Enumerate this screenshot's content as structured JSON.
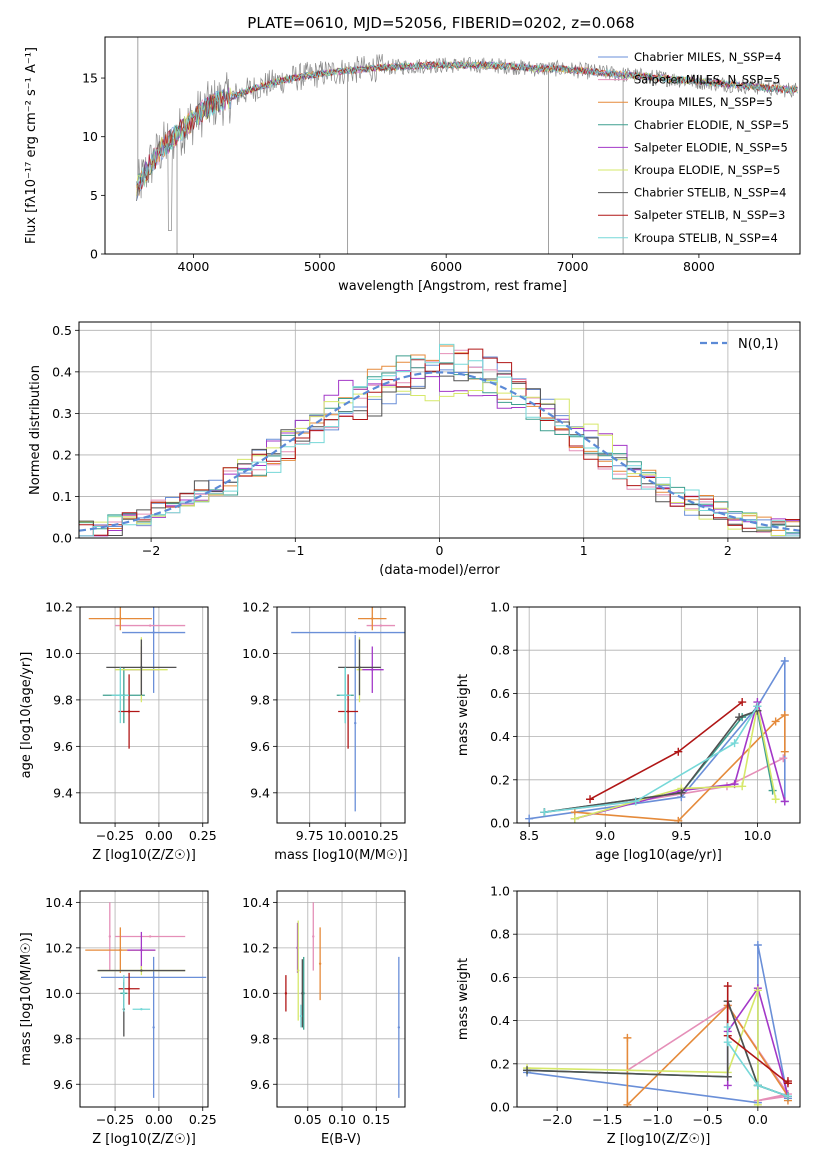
{
  "colors": {
    "Chabrier MILES": "#6a8fd8",
    "Salpeter MILES": "#e58fb8",
    "Kroupa MILES": "#e58a3a",
    "Chabrier ELODIE": "#3f9f8f",
    "Salpeter ELODIE": "#a338c8",
    "Kroupa ELODIE": "#d6e86a",
    "Chabrier STELIB": "#505050",
    "Salpeter STELIB": "#b01616",
    "Kroupa STELIB": "#76d8d8"
  },
  "chart_data": [
    {
      "id": "spectrum",
      "type": "line",
      "title": "PLATE=0610, MJD=52056, FIBERID=0202, z=0.068",
      "xlabel": "wavelength [Angstrom, rest frame]",
      "ylabel": "Flux [fλ10⁻¹⁷ erg cm⁻² s⁻¹ A⁻¹]",
      "xlim": [
        3300,
        8800
      ],
      "ylim": [
        0,
        18.5
      ],
      "xticks": [
        4000,
        5000,
        6000,
        7000,
        8000
      ],
      "yticks": [
        0,
        5,
        10,
        15
      ],
      "legend_position": "upper right",
      "legend": [
        {
          "model": "Chabrier MILES",
          "label": "Chabrier MILES, N_SSP=4"
        },
        {
          "model": "Salpeter MILES",
          "label": "Salpeter MILES, N_SSP=5"
        },
        {
          "model": "Kroupa MILES",
          "label": "Kroupa MILES, N_SSP=5"
        },
        {
          "model": "Chabrier ELODIE",
          "label": "Chabrier ELODIE, N_SSP=5"
        },
        {
          "model": "Salpeter ELODIE",
          "label": "Salpeter ELODIE, N_SSP=5"
        },
        {
          "model": "Kroupa ELODIE",
          "label": "Kroupa ELODIE, N_SSP=5"
        },
        {
          "model": "Chabrier STELIB",
          "label": "Chabrier STELIB, N_SSP=4"
        },
        {
          "model": "Salpeter STELIB",
          "label": "Salpeter STELIB, N_SSP=3"
        },
        {
          "model": "Kroupa STELIB",
          "label": "Kroupa STELIB, N_SSP=4"
        }
      ],
      "continuum": {
        "x": [
          3550,
          3650,
          3750,
          3850,
          3950,
          4050,
          4150,
          4250,
          4350,
          4500,
          4700,
          4900,
          5100,
          5300,
          5500,
          5700,
          5900,
          6100,
          6300,
          6500,
          6700,
          6900,
          7100,
          7300,
          7500,
          7700,
          7900,
          8100,
          8300,
          8500,
          8700
        ],
        "y": [
          5.5,
          7.5,
          9.0,
          10.0,
          11.0,
          12.0,
          12.8,
          13.2,
          13.6,
          14.2,
          14.8,
          15.2,
          15.5,
          15.7,
          15.9,
          16.0,
          16.1,
          16.1,
          16.1,
          16.0,
          15.8,
          15.8,
          15.6,
          15.4,
          15.2,
          15.0,
          14.8,
          14.6,
          14.4,
          14.2,
          14.0
        ]
      }
    },
    {
      "id": "residuals",
      "type": "histogram",
      "xlabel": "(data-model)/error",
      "ylabel": "Normed distribution",
      "xlim": [
        -2.5,
        2.5
      ],
      "ylim": [
        0,
        0.52
      ],
      "xticks": [
        -2,
        -1,
        0,
        1,
        2
      ],
      "yticks": [
        0.0,
        0.1,
        0.2,
        0.3,
        0.4,
        0.5
      ],
      "reference_curve": "N(0,1)",
      "reference_color": "#5b8ad6",
      "bin_width": 0.1
    },
    {
      "id": "age-vs-Z",
      "type": "scatter",
      "xlabel": "Z [log10(Z/Z☉)]",
      "ylabel": "age  [log10(age/yr)]",
      "xlim": [
        -0.45,
        0.28
      ],
      "ylim": [
        9.27,
        10.2
      ],
      "xticks": [
        -0.25,
        0.0,
        0.25
      ],
      "yticks": [
        9.4,
        9.6,
        9.8,
        10.0,
        10.2
      ],
      "points": [
        {
          "model": "Chabrier MILES",
          "x": -0.03,
          "y": 10.09,
          "xerr": 0.18,
          "yerr": 0.26
        },
        {
          "model": "Salpeter MILES",
          "x": -0.05,
          "y": 10.12,
          "xerr": 0.2,
          "yerr": 0.0
        },
        {
          "model": "Kroupa MILES",
          "x": -0.22,
          "y": 10.15,
          "xerr": 0.18,
          "yerr": 0.05
        },
        {
          "model": "Chabrier ELODIE",
          "x": -0.2,
          "y": 9.82,
          "xerr": 0.12,
          "yerr": 0.12
        },
        {
          "model": "Salpeter ELODIE",
          "x": -0.1,
          "y": 9.93,
          "xerr": 0.1,
          "yerr": 0.1
        },
        {
          "model": "Kroupa ELODIE",
          "x": -0.1,
          "y": 9.93,
          "xerr": 0.15,
          "yerr": 0.14
        },
        {
          "model": "Chabrier STELIB",
          "x": -0.1,
          "y": 9.94,
          "xerr": 0.2,
          "yerr": 0.12
        },
        {
          "model": "Salpeter STELIB",
          "x": -0.17,
          "y": 9.75,
          "xerr": 0.06,
          "yerr": 0.16
        },
        {
          "model": "Kroupa STELIB",
          "x": -0.22,
          "y": 9.82,
          "xerr": 0.05,
          "yerr": 0.12
        }
      ]
    },
    {
      "id": "age-vs-mass",
      "type": "scatter",
      "xlabel": "mass [log10(M/M☉)]",
      "ylabel": "",
      "xlim": [
        9.52,
        10.42
      ],
      "ylim": [
        9.27,
        10.2
      ],
      "xticks": [
        9.75,
        10.0,
        10.25
      ],
      "yticks": [
        9.4,
        9.6,
        9.8,
        10.0,
        10.2
      ],
      "points": [
        {
          "model": "Chabrier MILES",
          "x": 10.07,
          "y": 10.09,
          "xerr": 0.45,
          "yerr": 0.0
        },
        {
          "model": "Chabrier MILES",
          "x": 10.07,
          "y": 9.7,
          "xerr": 0.0,
          "yerr": 0.38
        },
        {
          "model": "Salpeter MILES",
          "x": 10.25,
          "y": 10.12,
          "xerr": 0.1,
          "yerr": 0.0
        },
        {
          "model": "Kroupa MILES",
          "x": 10.19,
          "y": 10.15,
          "xerr": 0.1,
          "yerr": 0.05
        },
        {
          "model": "Chabrier ELODIE",
          "x": 10.0,
          "y": 9.82,
          "xerr": 0.06,
          "yerr": 0.12
        },
        {
          "model": "Salpeter ELODIE",
          "x": 10.19,
          "y": 9.93,
          "xerr": 0.08,
          "yerr": 0.1
        },
        {
          "model": "Kroupa ELODIE",
          "x": 10.1,
          "y": 9.93,
          "xerr": 0.02,
          "yerr": 0.14
        },
        {
          "model": "Chabrier STELIB",
          "x": 10.1,
          "y": 9.94,
          "xerr": 0.15,
          "yerr": 0.12
        },
        {
          "model": "Salpeter STELIB",
          "x": 10.02,
          "y": 9.75,
          "xerr": 0.07,
          "yerr": 0.16
        },
        {
          "model": "Kroupa STELIB",
          "x": 10.0,
          "y": 9.82,
          "xerr": 0.04,
          "yerr": 0.12
        }
      ]
    },
    {
      "id": "mass-weight-vs-age",
      "type": "line",
      "xlabel": "age  [log10(age/yr)]",
      "ylabel": "mass weight",
      "xlim": [
        8.42,
        10.28
      ],
      "ylim": [
        0,
        1.0
      ],
      "xticks": [
        8.5,
        9.0,
        9.5,
        10.0
      ],
      "yticks": [
        0.0,
        0.2,
        0.4,
        0.6,
        0.8,
        1.0
      ],
      "series": [
        {
          "model": "Chabrier MILES",
          "x": [
            8.5,
            9.5,
            10.0,
            10.18,
            10.18
          ],
          "y": [
            0.02,
            0.12,
            0.54,
            0.75,
            0.1
          ]
        },
        {
          "model": "Salpeter MILES",
          "x": [
            8.6,
            9.2,
            9.8,
            10.17
          ],
          "y": [
            0.05,
            0.1,
            0.17,
            0.3
          ]
        },
        {
          "model": "Kroupa MILES",
          "x": [
            8.8,
            9.48,
            10.12,
            10.18,
            10.18
          ],
          "y": [
            0.05,
            0.01,
            0.47,
            0.5,
            0.33
          ]
        },
        {
          "model": "Chabrier ELODIE",
          "x": [
            8.6,
            9.5,
            9.9,
            10.0,
            10.1
          ],
          "y": [
            0.05,
            0.14,
            0.49,
            0.52,
            0.15
          ]
        },
        {
          "model": "Salpeter ELODIE",
          "x": [
            8.8,
            9.5,
            9.85,
            10.0,
            10.18
          ],
          "y": [
            0.02,
            0.15,
            0.18,
            0.56,
            0.1
          ]
        },
        {
          "model": "Kroupa ELODIE",
          "x": [
            8.8,
            9.5,
            9.9,
            10.0,
            10.12
          ],
          "y": [
            0.02,
            0.16,
            0.17,
            0.54,
            0.11
          ]
        },
        {
          "model": "Chabrier STELIB",
          "x": [
            8.6,
            9.5,
            9.88,
            10.0
          ],
          "y": [
            0.05,
            0.14,
            0.49,
            0.52
          ]
        },
        {
          "model": "Salpeter STELIB",
          "x": [
            8.9,
            9.48,
            9.9
          ],
          "y": [
            0.11,
            0.33,
            0.56
          ]
        },
        {
          "model": "Kroupa STELIB",
          "x": [
            8.6,
            9.2,
            9.85,
            10.0
          ],
          "y": [
            0.05,
            0.1,
            0.37,
            0.54
          ]
        }
      ]
    },
    {
      "id": "mass-vs-Z",
      "type": "scatter",
      "xlabel": "Z [log10(Z/Z☉)]",
      "ylabel": "mass [log10(M/M☉)]",
      "xlim": [
        -0.45,
        0.28
      ],
      "ylim": [
        9.5,
        10.45
      ],
      "xticks": [
        -0.25,
        0.0,
        0.25
      ],
      "yticks": [
        9.6,
        9.8,
        10.0,
        10.2,
        10.4
      ],
      "points": [
        {
          "model": "Chabrier MILES",
          "x": -0.03,
          "y": 10.07,
          "xerr": 0.3,
          "yerr": 0.0
        },
        {
          "model": "Chabrier MILES",
          "x": -0.03,
          "y": 9.85,
          "xerr": 0.0,
          "yerr": 0.31
        },
        {
          "model": "Salpeter MILES",
          "x": -0.05,
          "y": 10.25,
          "xerr": 0.2,
          "yerr": 0.0
        },
        {
          "model": "Salpeter MILES",
          "x": -0.28,
          "y": 10.25,
          "xerr": 0.0,
          "yerr": 0.15
        },
        {
          "model": "Kroupa MILES",
          "x": -0.22,
          "y": 10.19,
          "xerr": 0.2,
          "yerr": 0.1
        },
        {
          "model": "Chabrier ELODIE",
          "x": -0.2,
          "y": 10.0,
          "xerr": 0.02,
          "yerr": 0.06
        },
        {
          "model": "Salpeter ELODIE",
          "x": -0.1,
          "y": 10.19,
          "xerr": 0.08,
          "yerr": 0.08
        },
        {
          "model": "Kroupa ELODIE",
          "x": -0.1,
          "y": 10.1,
          "xerr": 0.25,
          "yerr": 0.0
        },
        {
          "model": "Kroupa ELODIE",
          "x": -0.1,
          "y": 10.1,
          "xerr": 0.0,
          "yerr": 0.02
        },
        {
          "model": "Chabrier STELIB",
          "x": -0.1,
          "y": 10.1,
          "xerr": 0.25,
          "yerr": 0.0
        },
        {
          "model": "Chabrier STELIB",
          "x": -0.2,
          "y": 9.93,
          "xerr": 0.0,
          "yerr": 0.12
        },
        {
          "model": "Salpeter STELIB",
          "x": -0.17,
          "y": 10.02,
          "xerr": 0.06,
          "yerr": 0.07
        },
        {
          "model": "Kroupa STELIB",
          "x": -0.1,
          "y": 9.93,
          "xerr": 0.05,
          "yerr": 0.0
        },
        {
          "model": "Kroupa STELIB",
          "x": -0.2,
          "y": 10.0,
          "xerr": 0.0,
          "yerr": 0.08
        }
      ]
    },
    {
      "id": "mass-vs-ebv",
      "type": "scatter",
      "xlabel": "E(B-V)",
      "ylabel": "",
      "xlim": [
        0.005,
        0.192
      ],
      "ylim": [
        9.5,
        10.45
      ],
      "xticks": [
        0.05,
        0.1,
        0.15
      ],
      "yticks": [
        9.6,
        9.8,
        10.0,
        10.2,
        10.4
      ],
      "points": [
        {
          "model": "Chabrier MILES",
          "x": 0.183,
          "y": 9.85,
          "yerr": 0.31
        },
        {
          "model": "Salpeter MILES",
          "x": 0.058,
          "y": 10.25,
          "yerr": 0.15
        },
        {
          "model": "Kroupa MILES",
          "x": 0.068,
          "y": 10.13,
          "yerr": 0.16
        },
        {
          "model": "Chabrier ELODIE",
          "x": 0.044,
          "y": 10.0,
          "yerr": 0.16
        },
        {
          "model": "Salpeter ELODIE",
          "x": 0.035,
          "y": 10.2,
          "yerr": 0.11
        },
        {
          "model": "Kroupa ELODIE",
          "x": 0.036,
          "y": 10.1,
          "yerr": 0.22
        },
        {
          "model": "Chabrier STELIB",
          "x": 0.042,
          "y": 10.0,
          "yerr": 0.15
        },
        {
          "model": "Salpeter STELIB",
          "x": 0.018,
          "y": 10.0,
          "yerr": 0.08
        },
        {
          "model": "Kroupa STELIB",
          "x": 0.04,
          "y": 9.9,
          "yerr": 0.05
        }
      ]
    },
    {
      "id": "mass-weight-vs-Z",
      "type": "line",
      "xlabel": "Z [log10(Z/Z☉)]",
      "ylabel": "mass weight",
      "xlim": [
        -2.4,
        0.42
      ],
      "ylim": [
        0,
        1.0
      ],
      "xticks": [
        -2.0,
        -1.5,
        -1.0,
        -0.5,
        0.0
      ],
      "yticks": [
        0.0,
        0.2,
        0.4,
        0.6,
        0.8,
        1.0
      ],
      "series": [
        {
          "model": "Chabrier MILES",
          "x": [
            -2.3,
            0.0,
            0.0,
            0.3
          ],
          "y": [
            0.16,
            0.02,
            0.75,
            0.04
          ]
        },
        {
          "model": "Salpeter MILES",
          "x": [
            -1.3,
            -0.3,
            0.3,
            0.0,
            0.3
          ],
          "y": [
            0.17,
            0.47,
            0.06,
            0.03,
            0.05
          ]
        },
        {
          "model": "Kroupa MILES",
          "x": [
            -1.3,
            -1.3,
            -0.3,
            0.3,
            0.3
          ],
          "y": [
            0.32,
            0.01,
            0.47,
            0.05,
            0.03
          ]
        },
        {
          "model": "Chabrier ELODIE",
          "x": [
            -2.3,
            -0.3,
            -0.3,
            0.0,
            0.3
          ],
          "y": [
            0.17,
            0.14,
            0.49,
            0.1,
            0.05
          ]
        },
        {
          "model": "Salpeter ELODIE",
          "x": [
            -0.3,
            -0.3,
            0.0,
            0.3
          ],
          "y": [
            0.1,
            0.35,
            0.55,
            0.05
          ]
        },
        {
          "model": "Kroupa ELODIE",
          "x": [
            -2.3,
            -0.3,
            0.0,
            0.0
          ],
          "y": [
            0.18,
            0.16,
            0.54,
            0.01
          ]
        },
        {
          "model": "Chabrier STELIB",
          "x": [
            -2.3,
            -0.3,
            -0.3,
            0.0,
            0.3
          ],
          "y": [
            0.17,
            0.14,
            0.49,
            0.1,
            0.05
          ]
        },
        {
          "model": "Salpeter STELIB",
          "x": [
            -0.3,
            -0.3,
            0.3,
            0.3
          ],
          "y": [
            0.56,
            0.33,
            0.11,
            0.12
          ]
        },
        {
          "model": "Kroupa STELIB",
          "x": [
            -0.3,
            -0.3,
            0.0,
            0.3
          ],
          "y": [
            0.37,
            0.3,
            0.1,
            0.05
          ]
        }
      ]
    }
  ]
}
